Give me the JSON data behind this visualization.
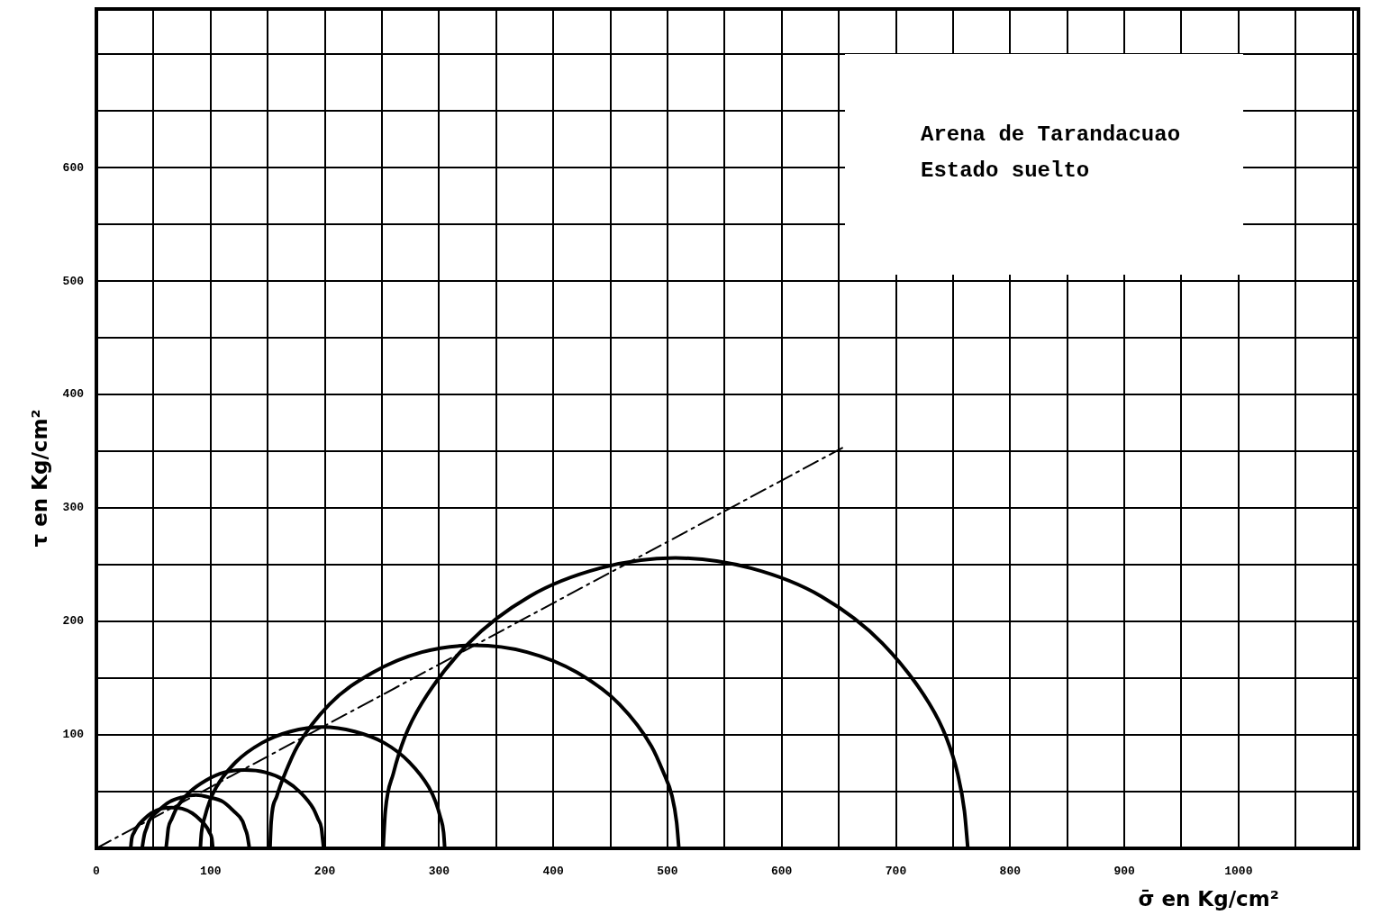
{
  "chart_data": {
    "type": "line",
    "xlabel": "σ̄ en Kg/cm²",
    "ylabel": "τ en Kg/cm²",
    "annotations": [
      "Arena de Tarandacuao",
      "Estado suelto"
    ],
    "xlim": [
      0,
      1105
    ],
    "ylim": [
      0,
      740
    ],
    "xticks": [
      0,
      {
        "value": 50,
        "label": null
      },
      100,
      {
        "value": 150,
        "label": null
      },
      200,
      {
        "value": 250,
        "label": null
      },
      300,
      {
        "value": 350,
        "label": null
      },
      400,
      {
        "value": 450,
        "label": null
      },
      500,
      {
        "value": 550,
        "label": null
      },
      600,
      {
        "value": 650,
        "label": null
      },
      700,
      {
        "value": 750,
        "label": null
      },
      800,
      {
        "value": 850,
        "label": null
      },
      900,
      {
        "value": 950,
        "label": null
      },
      1000,
      {
        "value": 1050,
        "label": null
      },
      {
        "value": 1100,
        "label": null
      }
    ],
    "yticks": [
      {
        "value": 0,
        "label": null
      },
      {
        "value": 50,
        "label": null
      },
      100,
      {
        "value": 150,
        "label": null
      },
      200,
      {
        "value": 250,
        "label": null
      },
      300,
      {
        "value": 350,
        "label": null
      },
      400,
      {
        "value": 450,
        "label": null
      },
      500,
      {
        "value": 550,
        "label": null
      },
      600,
      {
        "value": 650,
        "label": null
      },
      {
        "value": 700,
        "label": null
      }
    ],
    "grid": true,
    "marker": "none",
    "series": [
      {
        "color": "#000000",
        "x": [
          30,
          31,
          33,
          35,
          41,
          48,
          57,
          66,
          75,
          84,
          91,
          97,
          99,
          101,
          102
        ],
        "values": [
          0,
          9,
          14,
          18,
          25,
          31,
          35,
          36,
          35,
          31,
          25,
          18,
          14,
          9,
          0
        ]
      },
      {
        "color": "#000000",
        "x": [
          40,
          42,
          44,
          46,
          54,
          64,
          75,
          87,
          99,
          111,
          120,
          128,
          130,
          132,
          134
        ],
        "values": [
          0,
          12,
          18,
          24,
          33,
          41,
          45,
          47,
          45,
          41,
          33,
          24,
          18,
          12,
          0
        ]
      },
      {
        "color": "#000000",
        "x": [
          61,
          62,
          63,
          66,
          70,
          81,
          96,
          112,
          130,
          148,
          165,
          179,
          190,
          194,
          197,
          198,
          199
        ],
        "values": [
          0,
          9,
          18,
          26,
          35,
          49,
          60,
          67,
          69,
          67,
          60,
          49,
          35,
          26,
          18,
          9,
          0
        ]
      },
      {
        "color": "#000000",
        "x": [
          91,
          92,
          95,
          99,
          105,
          122,
          145,
          170,
          198,
          226,
          252,
          274,
          291,
          297,
          301,
          304,
          305
        ],
        "values": [
          0,
          14,
          28,
          41,
          54,
          76,
          93,
          103,
          107,
          103,
          93,
          76,
          54,
          41,
          28,
          14,
          0
        ]
      },
      {
        "color": "#000000",
        "x": [
          152,
          153,
          158,
          166,
          176,
          204,
          242,
          285,
          331,
          377,
          421,
          458,
          486,
          496,
          504,
          508,
          510
        ],
        "values": [
          0,
          23,
          46,
          68,
          90,
          127,
          155,
          173,
          179,
          173,
          155,
          127,
          90,
          68,
          46,
          23,
          0
        ]
      },
      {
        "color": "#000000",
        "x": [
          251,
          253,
          260,
          270,
          285,
          326,
          379,
          441,
          507,
          573,
          635,
          688,
          729,
          744,
          754,
          760,
          763
        ],
        "values": [
          0,
          33,
          66,
          98,
          128,
          181,
          222,
          247,
          256,
          247,
          222,
          181,
          128,
          98,
          66,
          33,
          0
        ]
      },
      {
        "color": "#000000",
        "line_style": "dashed",
        "x": [
          0,
          653
        ],
        "values": [
          0,
          353
        ]
      }
    ]
  }
}
